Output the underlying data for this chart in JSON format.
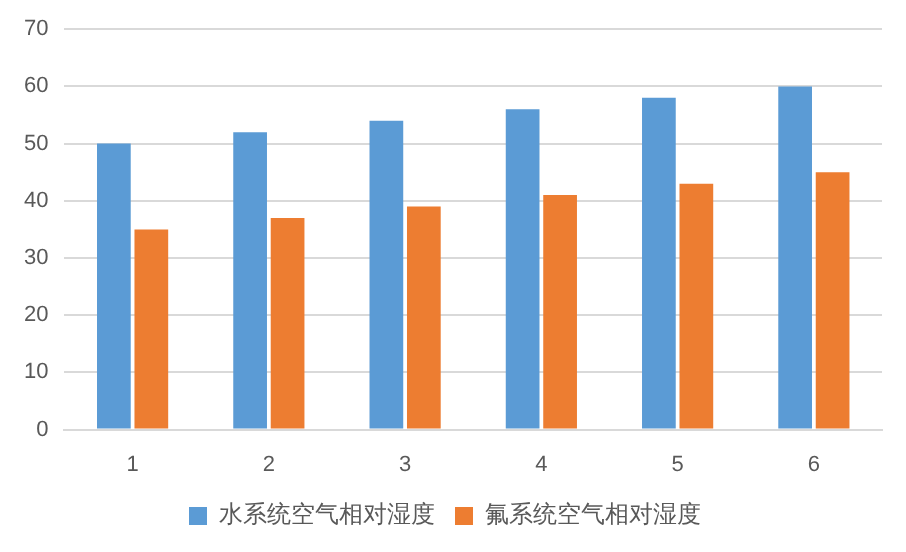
{
  "chart_data": {
    "type": "bar",
    "categories": [
      "1",
      "2",
      "3",
      "4",
      "5",
      "6"
    ],
    "series": [
      {
        "name": "水系统空气相对湿度",
        "color": "#5b9bd5",
        "values": [
          50,
          52,
          54,
          56,
          58,
          60
        ]
      },
      {
        "name": "氟系统空气相对湿度",
        "color": "#ed7d31",
        "values": [
          35,
          37,
          39,
          41,
          43,
          45
        ]
      }
    ],
    "ylim": [
      0,
      70
    ],
    "yticks": [
      0,
      10,
      20,
      30,
      40,
      50,
      60,
      70
    ],
    "grid": "y",
    "legend": "bottom"
  }
}
